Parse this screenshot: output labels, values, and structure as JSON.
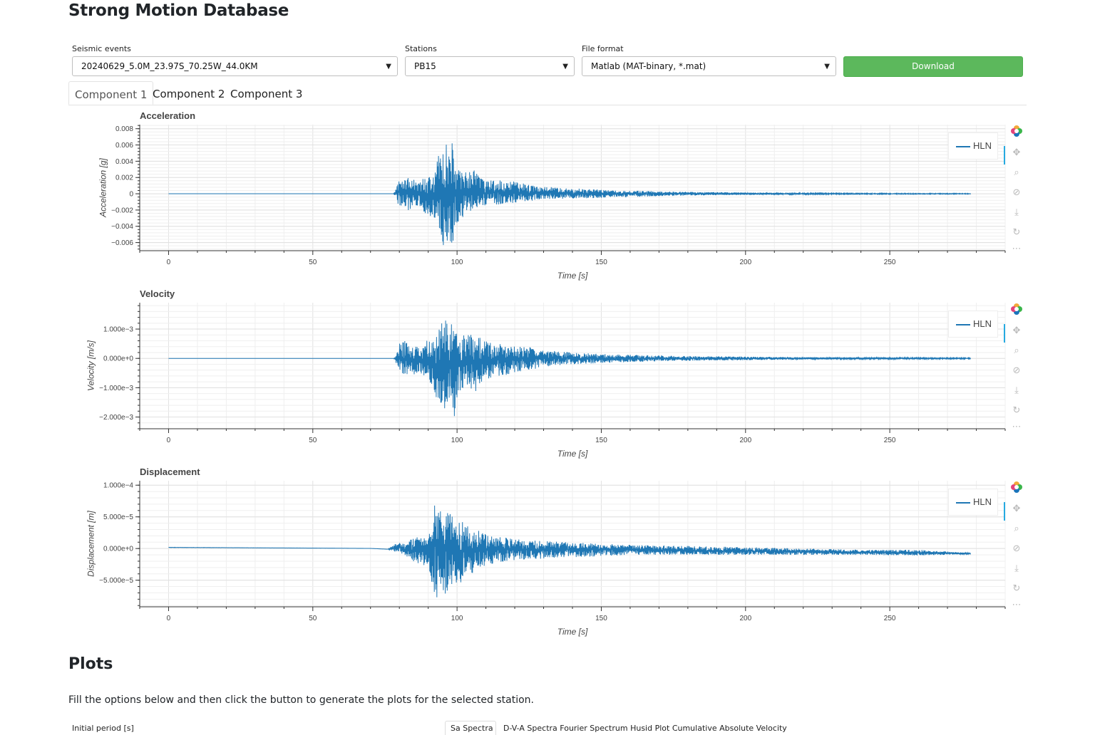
{
  "page": {
    "title": "Strong Motion Database"
  },
  "controls": {
    "events_label": "Seismic events",
    "events_value": "20240629_5.0M_23.97S_70.25W_44.0KM",
    "stations_label": "Stations",
    "stations_value": "PB15",
    "format_label": "File format",
    "format_value": "Matlab (MAT-binary, *.mat)",
    "download_label": "Download"
  },
  "tabs": [
    {
      "label": "Component 1",
      "active": true
    },
    {
      "label": "Component 2",
      "active": false
    },
    {
      "label": "Component 3",
      "active": false
    }
  ],
  "toolbar_icons": [
    "bokeh-logo-icon",
    "pan-icon",
    "box-zoom-icon",
    "wheel-zoom-icon",
    "save-icon",
    "reset-icon",
    "more-icon"
  ],
  "chart_data": [
    {
      "type": "line",
      "title": "Acceleration",
      "xlabel": "Time [s]",
      "ylabel": "Acceleration [g]",
      "xlim": [
        -10,
        290
      ],
      "ylim": [
        -0.007,
        0.0085
      ],
      "x_ticks": [
        0,
        50,
        100,
        150,
        200,
        250
      ],
      "x_tick_labels": [
        "0",
        "50",
        "100",
        "150",
        "200",
        "250"
      ],
      "y_ticks": [
        0.008,
        0.006,
        0.004,
        0.002,
        0,
        -0.002,
        -0.004,
        -0.006
      ],
      "y_tick_labels": [
        "0.008",
        "0.006",
        "0.004",
        "0.002",
        "0",
        "−0.002",
        "−0.004",
        "−0.006"
      ],
      "grid": true,
      "legend": "top-right",
      "series": [
        {
          "name": "HLN",
          "color": "#1f77b4",
          "x": [
            0,
            78,
            79,
            80,
            81,
            83,
            85,
            87,
            89,
            91,
            92,
            93,
            94,
            95,
            96,
            97,
            98,
            99,
            100,
            102,
            104,
            106,
            108,
            110,
            115,
            120,
            125,
            130,
            140,
            150,
            160,
            170,
            180,
            200,
            220,
            240,
            260,
            278
          ],
          "upper": [
            0,
            0,
            0.0008,
            0.0022,
            0.0016,
            0.002,
            0.0018,
            0.0017,
            0.0021,
            0.0022,
            0.0026,
            0.0042,
            0.0052,
            0.0064,
            0.0068,
            0.005,
            0.0079,
            0.0046,
            0.0038,
            0.0032,
            0.0026,
            0.0029,
            0.0021,
            0.0016,
            0.0017,
            0.0015,
            0.0011,
            0.0009,
            0.0007,
            0.0005,
            0.0004,
            0.0003,
            0.00025,
            0.00015,
            0.0001,
            7e-05,
            6e-05,
            5e-05
          ],
          "lower": [
            0,
            0,
            -0.0007,
            -0.0018,
            -0.0014,
            -0.0021,
            -0.0017,
            -0.0016,
            -0.0024,
            -0.0028,
            -0.0031,
            -0.0036,
            -0.0044,
            -0.0062,
            -0.0068,
            -0.0061,
            -0.0068,
            -0.0052,
            -0.0036,
            -0.0029,
            -0.0024,
            -0.0019,
            -0.0017,
            -0.0014,
            -0.0013,
            -0.0011,
            -0.0009,
            -0.0007,
            -0.0006,
            -0.0005,
            -0.0004,
            -0.0003,
            -0.00022,
            -0.00014,
            -0.0001,
            -7e-05,
            -6e-05,
            -5e-05
          ]
        }
      ]
    },
    {
      "type": "line",
      "title": "Velocity",
      "xlabel": "Time [s]",
      "ylabel": "Velocity [m/s]",
      "xlim": [
        -10,
        290
      ],
      "ylim": [
        -0.0024,
        0.0019
      ],
      "x_ticks": [
        0,
        50,
        100,
        150,
        200,
        250
      ],
      "x_tick_labels": [
        "0",
        "50",
        "100",
        "150",
        "200",
        "250"
      ],
      "y_ticks": [
        0.001,
        0,
        -0.001,
        -0.002
      ],
      "y_tick_labels": [
        "1.000e−3",
        "0.000e+0",
        "−1.000e−3",
        "−2.000e−3"
      ],
      "grid": true,
      "legend": "top-right",
      "series": [
        {
          "name": "HLN",
          "color": "#1f77b4",
          "x": [
            0,
            78,
            79,
            80,
            82,
            84,
            86,
            88,
            90,
            92,
            93,
            94,
            95,
            96,
            97,
            98,
            99,
            100,
            102,
            104,
            106,
            108,
            110,
            115,
            120,
            125,
            130,
            140,
            150,
            160,
            170,
            180,
            200,
            220,
            240,
            260,
            278
          ],
          "upper": [
            0,
            0,
            0.0002,
            0.0005,
            0.0006,
            0.0004,
            0.0005,
            0.0004,
            0.0007,
            0.0006,
            0.0009,
            0.0011,
            0.0014,
            0.0016,
            0.0009,
            0.0015,
            0.0008,
            0.001,
            0.0008,
            0.0009,
            0.0007,
            0.0008,
            0.0006,
            0.0005,
            0.0004,
            0.0004,
            0.0003,
            0.0002,
            0.00015,
            0.00012,
            0.0001,
            8e-05,
            6e-05,
            4e-05,
            3e-05,
            3e-05,
            2e-05
          ],
          "lower": [
            0,
            0,
            -0.0002,
            -0.0004,
            -0.0006,
            -0.0005,
            -0.0006,
            -0.0005,
            -0.0008,
            -0.0011,
            -0.0014,
            -0.0016,
            -0.0021,
            -0.0017,
            -0.0015,
            -0.0019,
            -0.0021,
            -0.0014,
            -0.0011,
            -0.0009,
            -0.0012,
            -0.0009,
            -0.0007,
            -0.0006,
            -0.0005,
            -0.0004,
            -0.0003,
            -0.0002,
            -0.00016,
            -0.00013,
            -0.0001,
            -8e-05,
            -6e-05,
            -4e-05,
            -3e-05,
            -3e-05,
            -2e-05
          ]
        }
      ]
    },
    {
      "type": "line",
      "title": "Displacement",
      "xlabel": "Time [s]",
      "ylabel": "Displacement [m]",
      "xlim": [
        -10,
        290
      ],
      "ylim": [
        -9.2e-05,
        0.000107
      ],
      "x_ticks": [
        0,
        50,
        100,
        150,
        200,
        250
      ],
      "x_tick_labels": [
        "0",
        "50",
        "100",
        "150",
        "200",
        "250"
      ],
      "y_ticks": [
        0.0001,
        5e-05,
        0,
        -5e-05
      ],
      "y_tick_labels": [
        "1.000e−4",
        "5.000e−5",
        "0.000e+0",
        "−5.000e−5"
      ],
      "grid": true,
      "legend": "top-right",
      "series": [
        {
          "name": "HLN",
          "color": "#1f77b4",
          "x": [
            0,
            20,
            40,
            60,
            70,
            76,
            78,
            80,
            82,
            84,
            86,
            88,
            90,
            91,
            92,
            93,
            94,
            95,
            96,
            97,
            98,
            100,
            102,
            104,
            106,
            108,
            110,
            115,
            120,
            130,
            140,
            150,
            160,
            180,
            200,
            220,
            240,
            260,
            278
          ],
          "upper": [
            2e-06,
            1.5e-06,
            1e-06,
            5e-07,
            2e-07,
            -1e-06,
            5e-06,
            1.2e-05,
            8e-06,
            1.5e-05,
            1.8e-05,
            1.6e-05,
            2.6e-05,
            4e-05,
            0.000105,
            5.5e-05,
            7e-05,
            5.5e-05,
            6.8e-05,
            5.8e-05,
            7e-05,
            4.8e-05,
            4.2e-05,
            3.5e-05,
            3.3e-05,
            2.8e-05,
            2.4e-05,
            1.8e-05,
            1.6e-05,
            1.2e-05,
            1e-05,
            8e-06,
            6e-06,
            4e-06,
            2e-06,
            0,
            -2e-06,
            -2e-06,
            -7e-06
          ],
          "lower": [
            1.5e-06,
            1.2e-06,
            8e-07,
            4e-07,
            1e-07,
            -1.2e-06,
            -4e-06,
            -8e-06,
            -1.2e-05,
            -1.8e-05,
            -2.4e-05,
            -2.2e-05,
            -3.8e-05,
            -5e-05,
            -7.2e-05,
            -7.8e-05,
            -6.4e-05,
            -8.2e-05,
            -7.2e-05,
            -6.8e-05,
            -7e-05,
            -5.6e-05,
            -5.2e-05,
            -4.2e-05,
            -3.8e-05,
            -3.2e-05,
            -2.6e-05,
            -2.2e-05,
            -1.8e-05,
            -1.6e-05,
            -1.4e-05,
            -1.2e-05,
            -1e-05,
            -1e-05,
            -1e-05,
            -1e-05,
            -1e-05,
            -1.1e-05,
            -9e-06
          ]
        }
      ]
    }
  ],
  "plots_section": {
    "title": "Plots",
    "description": "Fill the options below and then click the button to generate the plots for the selected station.",
    "initial_period_label": "Initial period [s]",
    "cut_tab_label": "Sa Spectra",
    "cut_tabs_text": "D-V-A Spectra    Fourier Spectrum    Husid Plot    Cumulative Absolute Velocity"
  }
}
